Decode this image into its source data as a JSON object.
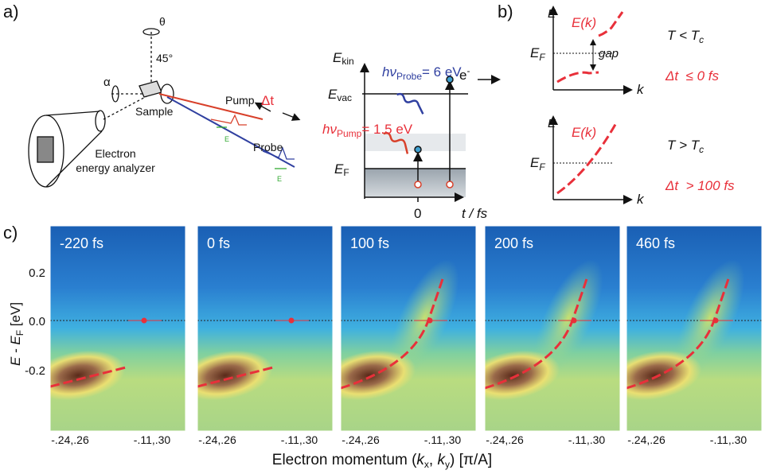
{
  "panel_labels": [
    "a)",
    "b)",
    "c)"
  ],
  "panel_a": {
    "setup": {
      "theta": "θ",
      "angle": "45°",
      "alpha": "α",
      "sample": "Sample",
      "pump": "Pump",
      "probe": "Probe",
      "delay": "Δt",
      "analyzer": [
        "Electron",
        "energy analyzer"
      ],
      "field": "E"
    },
    "energy_diagram": {
      "e_kin": {
        "main": "E",
        "sub": "kin"
      },
      "e_vac": {
        "main": "E",
        "sub": "vac"
      },
      "e_f": {
        "main": "E",
        "sub": "F"
      },
      "probe_photon": {
        "main": "hν",
        "sub": "Probe",
        "rest": "= 6 eV"
      },
      "pump_photon": {
        "main": "hν",
        "sub": "Pump",
        "rest": "= 1.5 eV"
      },
      "electron": {
        "main": "e",
        "sup": "-"
      },
      "x_label": "t / fs",
      "zero": "0"
    }
  },
  "panel_b": [
    {
      "energy": "E",
      "curve": "E(k)",
      "momentum": "k",
      "fermi": {
        "main": "E",
        "sub": "F"
      },
      "gap": "gap",
      "condition": {
        "main": "T < T",
        "sub": "c"
      },
      "delay": "Δt  ≤ 0 fs"
    },
    {
      "energy": "E",
      "curve": "E(k)",
      "momentum": "k",
      "fermi": {
        "main": "E",
        "sub": "F"
      },
      "condition": {
        "main": "T > T",
        "sub": "c"
      },
      "delay": "Δt  > 100 fs"
    }
  ],
  "panel_c": {
    "y_label": {
      "main": "E - E",
      "sub": "F",
      "rest": " [eV]"
    },
    "y_ticks": [
      "0.2",
      "0.0",
      "-0.2"
    ],
    "x_ticks": [
      "-.24,.26",
      "-.11,.30"
    ],
    "x_label": {
      "a": "Electron momentum (",
      "kx": "k",
      "kxs": "x",
      "b": ", ",
      "ky": "k",
      "kys": "y",
      "c": ") [π/A]"
    },
    "frames": [
      "-220 fs",
      "0 fs",
      "100 fs",
      "200 fs",
      "460 fs"
    ]
  }
}
